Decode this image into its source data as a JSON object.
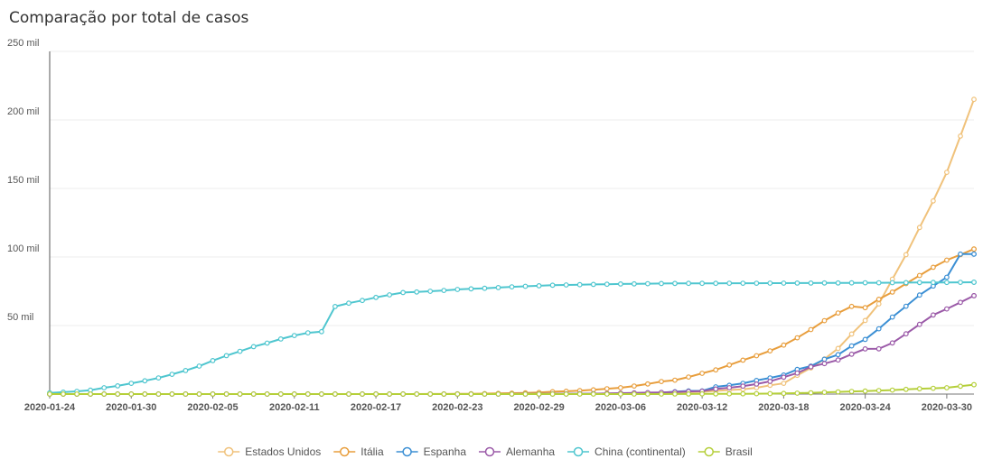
{
  "chart_data": {
    "type": "line",
    "title": "Comparação por total de casos",
    "xlabel": "",
    "ylabel": "",
    "ylim": [
      0,
      250000
    ],
    "y_ticks": [
      {
        "value": 50000,
        "label": "50 mil"
      },
      {
        "value": 100000,
        "label": "100 mil"
      },
      {
        "value": 150000,
        "label": "150 mil"
      },
      {
        "value": 200000,
        "label": "200 mil"
      },
      {
        "value": 250000,
        "label": "250 mil"
      }
    ],
    "x_start": "2020-01-24",
    "x_end": "2020-04-01",
    "x_ticks": [
      "2020-01-24",
      "2020-01-30",
      "2020-02-05",
      "2020-02-11",
      "2020-02-17",
      "2020-02-23",
      "2020-02-29",
      "2020-03-06",
      "2020-03-12",
      "2020-03-18",
      "2020-03-24",
      "2020-03-30"
    ],
    "grid": true,
    "legend": "bottom-center",
    "series": [
      {
        "name": "Estados Unidos",
        "color": "#f0c27b",
        "points": [
          [
            "2020-01-24",
            2
          ],
          [
            "2020-02-23",
            15
          ],
          [
            "2020-03-01",
            75
          ],
          [
            "2020-03-05",
            220
          ],
          [
            "2020-03-08",
            540
          ],
          [
            "2020-03-10",
            990
          ],
          [
            "2020-03-12",
            1660
          ],
          [
            "2020-03-14",
            2950
          ],
          [
            "2020-03-15",
            3500
          ],
          [
            "2020-03-16",
            4600
          ],
          [
            "2020-03-17",
            6400
          ],
          [
            "2020-03-18",
            7800
          ],
          [
            "2020-03-19",
            13700
          ],
          [
            "2020-03-20",
            19100
          ],
          [
            "2020-03-21",
            25500
          ],
          [
            "2020-03-22",
            33300
          ],
          [
            "2020-03-23",
            43800
          ],
          [
            "2020-03-24",
            53700
          ],
          [
            "2020-03-25",
            65800
          ],
          [
            "2020-03-26",
            83800
          ],
          [
            "2020-03-27",
            101700
          ],
          [
            "2020-03-28",
            121500
          ],
          [
            "2020-03-29",
            140900
          ],
          [
            "2020-03-30",
            161800
          ],
          [
            "2020-03-31",
            188200
          ],
          [
            "2020-04-01",
            215000
          ]
        ]
      },
      {
        "name": "Itália",
        "color": "#e89e3d",
        "points": [
          [
            "2020-01-24",
            0
          ],
          [
            "2020-01-31",
            2
          ],
          [
            "2020-02-20",
            3
          ],
          [
            "2020-02-22",
            76
          ],
          [
            "2020-02-23",
            155
          ],
          [
            "2020-02-24",
            229
          ],
          [
            "2020-02-25",
            322
          ],
          [
            "2020-02-26",
            453
          ],
          [
            "2020-02-27",
            655
          ],
          [
            "2020-02-28",
            888
          ],
          [
            "2020-02-29",
            1128
          ],
          [
            "2020-03-01",
            1694
          ],
          [
            "2020-03-02",
            2036
          ],
          [
            "2020-03-03",
            2502
          ],
          [
            "2020-03-04",
            3089
          ],
          [
            "2020-03-05",
            3858
          ],
          [
            "2020-03-06",
            4636
          ],
          [
            "2020-03-07",
            5883
          ],
          [
            "2020-03-08",
            7375
          ],
          [
            "2020-03-09",
            9172
          ],
          [
            "2020-03-10",
            10149
          ],
          [
            "2020-03-11",
            12462
          ],
          [
            "2020-03-12",
            15113
          ],
          [
            "2020-03-13",
            17660
          ],
          [
            "2020-03-14",
            21157
          ],
          [
            "2020-03-15",
            24747
          ],
          [
            "2020-03-16",
            27980
          ],
          [
            "2020-03-17",
            31506
          ],
          [
            "2020-03-18",
            35713
          ],
          [
            "2020-03-19",
            41035
          ],
          [
            "2020-03-20",
            47021
          ],
          [
            "2020-03-21",
            53578
          ],
          [
            "2020-03-22",
            59138
          ],
          [
            "2020-03-23",
            63927
          ],
          [
            "2020-03-24",
            63000
          ],
          [
            "2020-03-25",
            69176
          ],
          [
            "2020-03-26",
            74386
          ],
          [
            "2020-03-27",
            80589
          ],
          [
            "2020-03-28",
            86498
          ],
          [
            "2020-03-29",
            92472
          ],
          [
            "2020-03-30",
            97689
          ],
          [
            "2020-03-31",
            101739
          ],
          [
            "2020-04-01",
            105792
          ],
          [
            "2020-04-02",
            110574
          ]
        ]
      },
      {
        "name": "Espanha",
        "color": "#3b8fd4",
        "points": [
          [
            "2020-01-24",
            0
          ],
          [
            "2020-02-01",
            1
          ],
          [
            "2020-02-25",
            2
          ],
          [
            "2020-02-27",
            23
          ],
          [
            "2020-02-29",
            45
          ],
          [
            "2020-03-01",
            84
          ],
          [
            "2020-03-02",
            120
          ],
          [
            "2020-03-03",
            165
          ],
          [
            "2020-03-04",
            222
          ],
          [
            "2020-03-05",
            259
          ],
          [
            "2020-03-06",
            400
          ],
          [
            "2020-03-07",
            500
          ],
          [
            "2020-03-08",
            673
          ],
          [
            "2020-03-09",
            1073
          ],
          [
            "2020-03-10",
            1695
          ],
          [
            "2020-03-11",
            2277
          ],
          [
            "2020-03-12",
            2277
          ],
          [
            "2020-03-13",
            5232
          ],
          [
            "2020-03-14",
            6391
          ],
          [
            "2020-03-15",
            7798
          ],
          [
            "2020-03-16",
            9942
          ],
          [
            "2020-03-17",
            11748
          ],
          [
            "2020-03-18",
            13910
          ],
          [
            "2020-03-19",
            17963
          ],
          [
            "2020-03-20",
            20410
          ],
          [
            "2020-03-21",
            25374
          ],
          [
            "2020-03-22",
            28768
          ],
          [
            "2020-03-23",
            35136
          ],
          [
            "2020-03-24",
            39885
          ],
          [
            "2020-03-25",
            47610
          ],
          [
            "2020-03-26",
            56188
          ],
          [
            "2020-03-27",
            64059
          ],
          [
            "2020-03-28",
            72248
          ],
          [
            "2020-03-29",
            78797
          ],
          [
            "2020-03-30",
            85195
          ],
          [
            "2020-03-31",
            102136
          ],
          [
            "2020-04-01",
            102136
          ],
          [
            "2020-04-02",
            110238
          ]
        ]
      },
      {
        "name": "Alemanha",
        "color": "#9b5aa8",
        "points": [
          [
            "2020-01-24",
            0
          ],
          [
            "2020-01-28",
            4
          ],
          [
            "2020-02-01",
            8
          ],
          [
            "2020-02-20",
            16
          ],
          [
            "2020-02-25",
            18
          ],
          [
            "2020-02-27",
            46
          ],
          [
            "2020-02-29",
            79
          ],
          [
            "2020-03-02",
            150
          ],
          [
            "2020-03-04",
            262
          ],
          [
            "2020-03-06",
            670
          ],
          [
            "2020-03-08",
            1040
          ],
          [
            "2020-03-09",
            1176
          ],
          [
            "2020-03-10",
            1457
          ],
          [
            "2020-03-11",
            1908
          ],
          [
            "2020-03-12",
            2078
          ],
          [
            "2020-03-13",
            3675
          ],
          [
            "2020-03-14",
            4585
          ],
          [
            "2020-03-15",
            5795
          ],
          [
            "2020-03-16",
            7272
          ],
          [
            "2020-03-17",
            9257
          ],
          [
            "2020-03-18",
            12327
          ],
          [
            "2020-03-19",
            15320
          ],
          [
            "2020-03-20",
            19848
          ],
          [
            "2020-03-21",
            22213
          ],
          [
            "2020-03-22",
            24873
          ],
          [
            "2020-03-23",
            29056
          ],
          [
            "2020-03-24",
            32986
          ],
          [
            "2020-03-25",
            33000
          ],
          [
            "2020-03-26",
            37323
          ],
          [
            "2020-03-27",
            43938
          ],
          [
            "2020-03-28",
            50871
          ],
          [
            "2020-03-29",
            57695
          ],
          [
            "2020-03-30",
            62095
          ],
          [
            "2020-03-31",
            66885
          ],
          [
            "2020-04-01",
            71808
          ],
          [
            "2020-04-02",
            77872
          ]
        ]
      },
      {
        "name": "China (continental)",
        "color": "#4fc6cf",
        "points": [
          [
            "2020-01-24",
            880
          ],
          [
            "2020-01-25",
            1400
          ],
          [
            "2020-01-26",
            2000
          ],
          [
            "2020-01-27",
            2800
          ],
          [
            "2020-01-28",
            4600
          ],
          [
            "2020-01-29",
            6000
          ],
          [
            "2020-01-30",
            7800
          ],
          [
            "2020-01-31",
            9700
          ],
          [
            "2020-02-01",
            11800
          ],
          [
            "2020-02-02",
            14400
          ],
          [
            "2020-02-03",
            17200
          ],
          [
            "2020-02-04",
            20400
          ],
          [
            "2020-02-05",
            24400
          ],
          [
            "2020-02-06",
            28000
          ],
          [
            "2020-02-07",
            31200
          ],
          [
            "2020-02-08",
            34600
          ],
          [
            "2020-02-09",
            37200
          ],
          [
            "2020-02-10",
            40200
          ],
          [
            "2020-02-11",
            42700
          ],
          [
            "2020-02-12",
            44700
          ],
          [
            "2020-02-13",
            45500
          ],
          [
            "2020-02-14",
            63900
          ],
          [
            "2020-02-15",
            66300
          ],
          [
            "2020-02-16",
            68300
          ],
          [
            "2020-02-17",
            70500
          ],
          [
            "2020-02-18",
            72400
          ],
          [
            "2020-02-19",
            74100
          ],
          [
            "2020-02-20",
            74500
          ],
          [
            "2020-02-21",
            75000
          ],
          [
            "2020-02-22",
            75600
          ],
          [
            "2020-02-23",
            76300
          ],
          [
            "2020-02-24",
            76800
          ],
          [
            "2020-02-25",
            77200
          ],
          [
            "2020-02-26",
            77700
          ],
          [
            "2020-02-27",
            78200
          ],
          [
            "2020-02-28",
            78600
          ],
          [
            "2020-02-29",
            79000
          ],
          [
            "2020-03-01",
            79400
          ],
          [
            "2020-03-02",
            79600
          ],
          [
            "2020-03-03",
            79800
          ],
          [
            "2020-03-04",
            80000
          ],
          [
            "2020-03-06",
            80300
          ],
          [
            "2020-03-10",
            80750
          ],
          [
            "2020-03-15",
            80860
          ],
          [
            "2020-03-20",
            81000
          ],
          [
            "2020-03-25",
            81200
          ],
          [
            "2020-03-30",
            81470
          ],
          [
            "2020-04-02",
            81600
          ]
        ]
      },
      {
        "name": "Brasil",
        "color": "#b5cf3a",
        "points": [
          [
            "2020-01-24",
            0
          ],
          [
            "2020-02-26",
            1
          ],
          [
            "2020-03-01",
            2
          ],
          [
            "2020-03-04",
            4
          ],
          [
            "2020-03-07",
            19
          ],
          [
            "2020-03-10",
            34
          ],
          [
            "2020-03-13",
            151
          ],
          [
            "2020-03-16",
            234
          ],
          [
            "2020-03-18",
            428
          ],
          [
            "2020-03-20",
            904
          ],
          [
            "2020-03-22",
            1593
          ],
          [
            "2020-03-24",
            2201
          ],
          [
            "2020-03-26",
            2915
          ],
          [
            "2020-03-28",
            3904
          ],
          [
            "2020-03-30",
            4579
          ],
          [
            "2020-03-31",
            5717
          ],
          [
            "2020-04-01",
            6836
          ],
          [
            "2020-04-02",
            7910
          ]
        ]
      }
    ]
  }
}
